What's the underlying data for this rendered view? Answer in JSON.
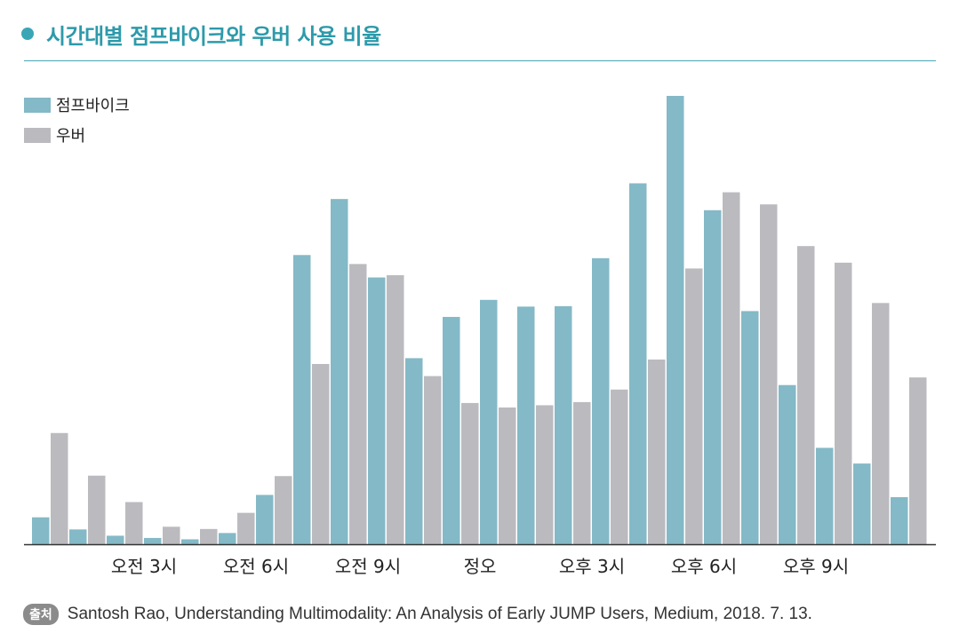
{
  "title": "시간대별 점프바이크와 우버 사용 비율",
  "source": {
    "badge": "출처",
    "text": "Santosh Rao, Understanding Multimodality: An Analysis of Early JUMP Users, Medium, 2018. 7. 13."
  },
  "colors": {
    "accent": "#3aa6b5",
    "jump": "#84b9c7",
    "uber": "#bbbbbf",
    "axis": "#333333"
  },
  "chart_data": {
    "type": "bar",
    "categories": [
      "0",
      "1",
      "2",
      "3",
      "4",
      "5",
      "6",
      "7",
      "8",
      "9",
      "10",
      "11",
      "12",
      "13",
      "14",
      "15",
      "16",
      "17",
      "18",
      "19",
      "20",
      "21",
      "22",
      "23"
    ],
    "series": [
      {
        "name": "점프바이크",
        "values": [
          6.0,
          3.3,
          1.9,
          1.4,
          1.1,
          2.5,
          11.0,
          64.5,
          77.0,
          59.5,
          41.5,
          50.7,
          54.5,
          53.0,
          53.1,
          63.8,
          80.5,
          100.0,
          74.5,
          52.0,
          35.5,
          21.5,
          18.0,
          10.5
        ]
      },
      {
        "name": "우버",
        "values": [
          24.8,
          15.3,
          9.4,
          3.9,
          3.4,
          7.0,
          15.2,
          40.2,
          62.5,
          60.0,
          37.5,
          31.5,
          30.5,
          31.0,
          31.7,
          34.5,
          41.2,
          61.5,
          78.5,
          75.8,
          66.5,
          62.8,
          53.8,
          37.2
        ]
      }
    ],
    "xtick_labels": [
      {
        "at": 3,
        "label": "오전 3시"
      },
      {
        "at": 6,
        "label": "오전 6시"
      },
      {
        "at": 9,
        "label": "오전 9시"
      },
      {
        "at": 12,
        "label": "정오"
      },
      {
        "at": 15,
        "label": "오후 3시"
      },
      {
        "at": 18,
        "label": "오후 6시"
      },
      {
        "at": 21,
        "label": "오후 9시"
      }
    ],
    "ylim": [
      0,
      100
    ],
    "legend": "top-left",
    "grid": false
  }
}
